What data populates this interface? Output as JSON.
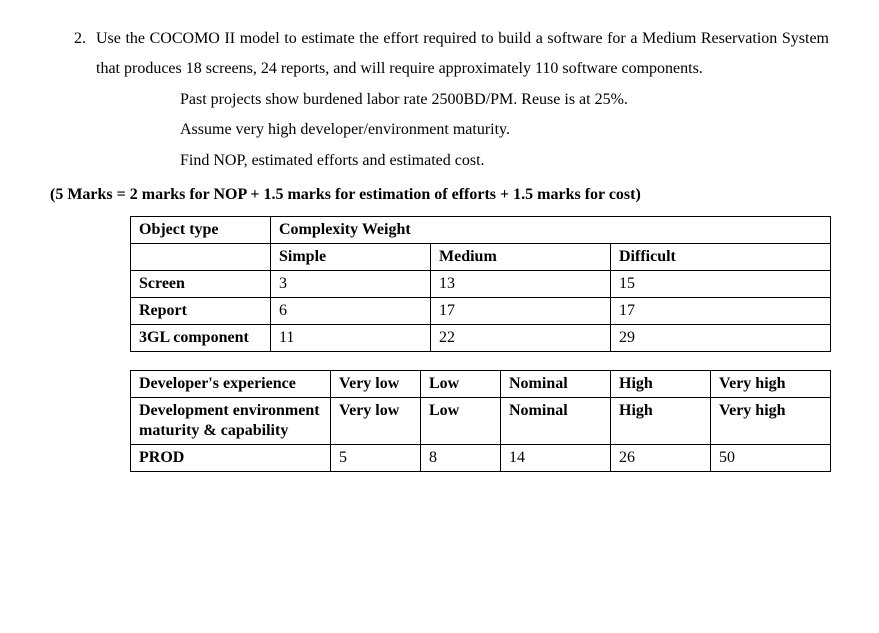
{
  "question": {
    "number": "2.",
    "text": "Use the COCOMO II model to estimate the effort required to build a software for a Medium Reservation System that produces 18 screens, 24 reports, and will require approximately 110 software components.",
    "line1": "Past projects show burdened labor rate 2500BD/PM. Reuse is at 25%.",
    "line2": "Assume very high developer/environment maturity.",
    "line3": "Find NOP, estimated efforts and estimated cost."
  },
  "marks_line": "(5 Marks = 2 marks for NOP + 1.5 marks for estimation of efforts + 1.5 marks for  cost)",
  "table1": {
    "header_object_type": "Object type",
    "header_complexity": "Complexity Weight",
    "header_simple": "Simple",
    "header_medium": "Medium",
    "header_difficult": "Difficult",
    "rows": [
      {
        "name": "Screen",
        "simple": "3",
        "medium": "13",
        "difficult": "15"
      },
      {
        "name": "Report",
        "simple": "6",
        "medium": "17",
        "difficult": "17"
      },
      {
        "name": "3GL component",
        "simple": "11",
        "medium": "22",
        "difficult": "29"
      }
    ]
  },
  "table2": {
    "row1_label": "Developer's experience",
    "row2_label": "Development environment maturity & capability",
    "row3_label": "PROD",
    "cols": {
      "verylow": "Very low",
      "low": "Low",
      "nominal": "Nominal",
      "high": "High",
      "veryhigh": "Very high"
    },
    "prod": {
      "verylow": "5",
      "low": "8",
      "nominal": "14",
      "high": "26",
      "veryhigh": "50"
    }
  },
  "style": {
    "font_family": "Times New Roman",
    "text_color": "#000000",
    "background_color": "#ffffff",
    "border_color": "#000000",
    "base_font_size_pt": 12
  }
}
